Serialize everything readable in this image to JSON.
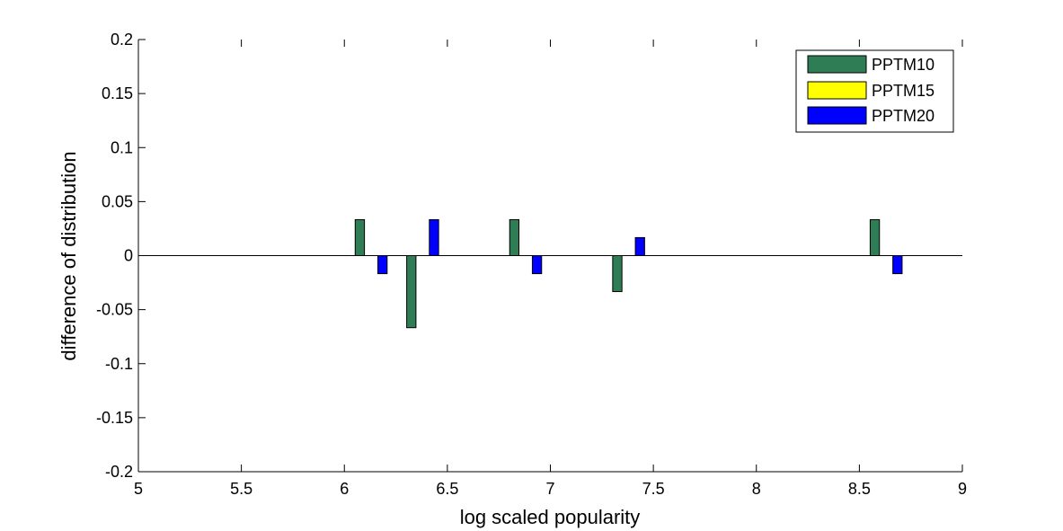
{
  "chart_data": {
    "type": "bar",
    "title": "",
    "xlabel": "log scaled popularity",
    "ylabel": "difference of distribution",
    "xlim": [
      5,
      9
    ],
    "ylim": [
      -0.2,
      0.2
    ],
    "xticks": [
      5,
      5.5,
      6,
      6.5,
      7,
      7.5,
      8,
      8.5,
      9
    ],
    "xtick_labels": [
      "5",
      "5.5",
      "6",
      "6.5",
      "7",
      "7.5",
      "8",
      "8.5",
      "9"
    ],
    "yticks": [
      0.2,
      0.15,
      0.1,
      0.05,
      0,
      -0.05,
      -0.1,
      -0.15,
      -0.2
    ],
    "ytick_labels": [
      "0.2",
      "0.15",
      "0.1",
      "0.05",
      "0",
      "-0.05",
      "-0.1",
      "-0.15",
      "-0.2"
    ],
    "grid": false,
    "legend_position": "top-right",
    "bar_width": 0.045,
    "series": [
      {
        "name": "PPTM10",
        "color": "#2e7d55",
        "points": [
          {
            "x": 6.075,
            "y": 0.0333
          },
          {
            "x": 6.325,
            "y": -0.0667
          },
          {
            "x": 6.825,
            "y": 0.0333
          },
          {
            "x": 7.325,
            "y": -0.0333
          },
          {
            "x": 8.575,
            "y": 0.0333
          }
        ]
      },
      {
        "name": "PPTM15",
        "color": "#ffff00",
        "points": []
      },
      {
        "name": "PPTM20",
        "color": "#0000ff",
        "points": [
          {
            "x": 6.185,
            "y": -0.0167
          },
          {
            "x": 6.435,
            "y": 0.0333
          },
          {
            "x": 6.935,
            "y": -0.0167
          },
          {
            "x": 7.435,
            "y": 0.0167
          },
          {
            "x": 8.685,
            "y": -0.0167
          }
        ]
      }
    ]
  }
}
